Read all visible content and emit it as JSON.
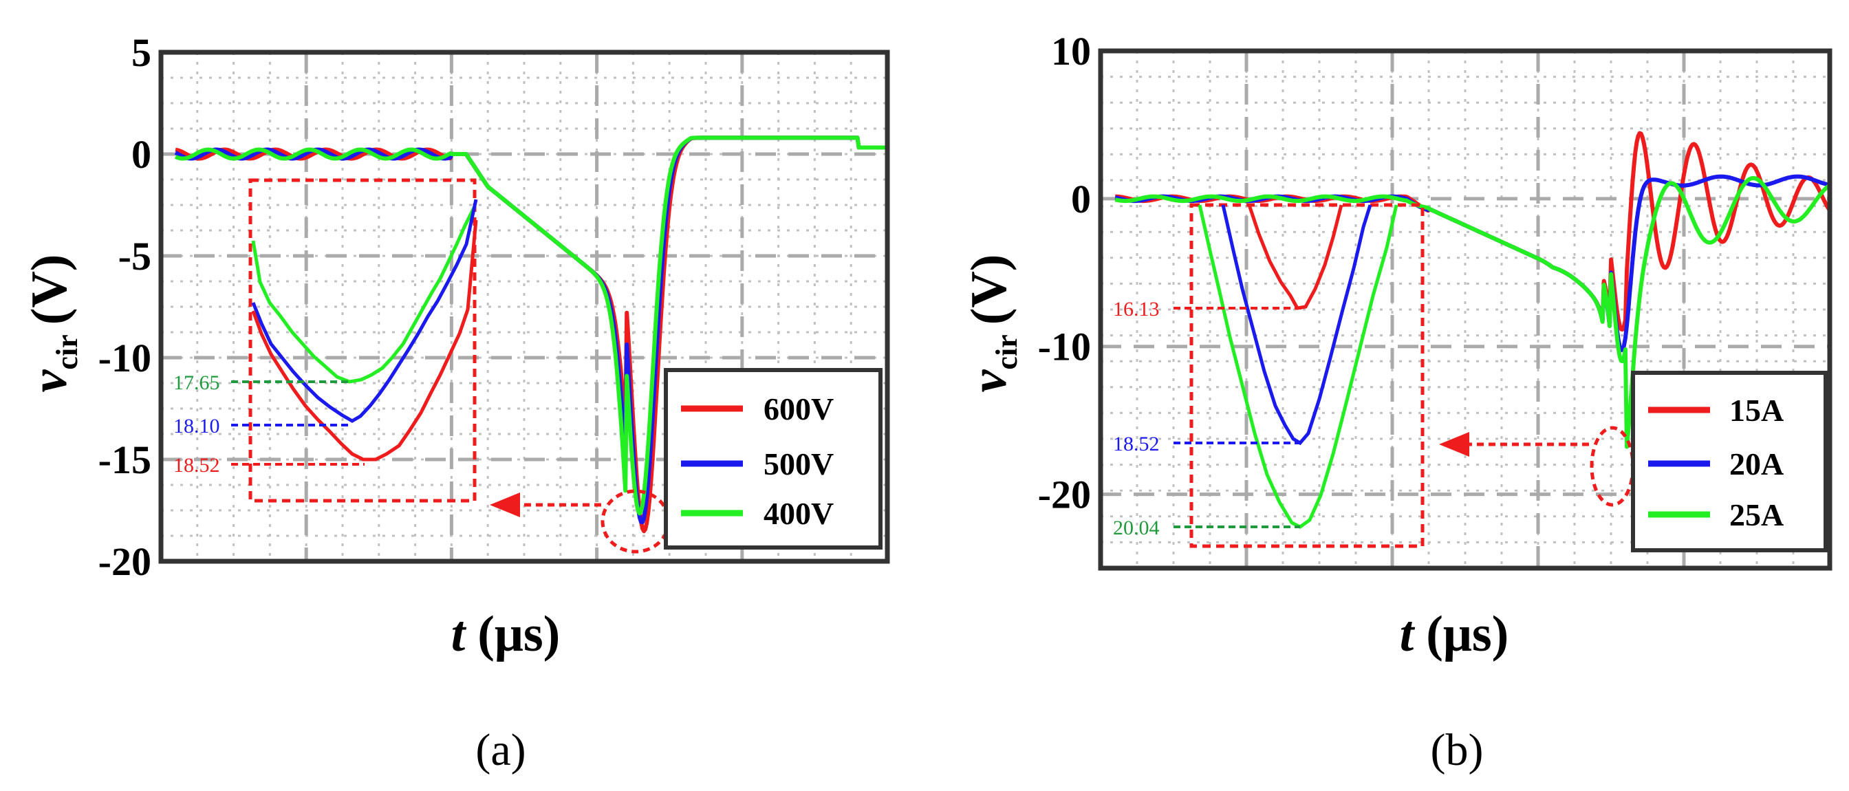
{
  "colors": {
    "red": "#ee1c1c",
    "blue": "#1a1aee",
    "green": "#22ee22",
    "annGreen": "#1f9a3c",
    "grid": "#c0c0c0",
    "frame": "#333333"
  },
  "chart_data": [
    {
      "type": "line",
      "caption": "(a)",
      "xlabel": "t (μs)",
      "ylabel": "v_cir (V)",
      "ylabel_main": "v",
      "ylabel_sub": "cir",
      "ylabel_unit": "(V)",
      "xlabel_main": "t",
      "xlabel_unit": "(μs)",
      "ylim": [
        -20,
        5
      ],
      "yticks": [
        "5",
        "0",
        "-5",
        "-10",
        "-15",
        "-20"
      ],
      "ytick_values": [
        5,
        0,
        -5,
        -10,
        -15,
        -20
      ],
      "xlim": [
        0,
        1
      ],
      "legend_position": "bottom-right",
      "series": [
        {
          "name": "600V",
          "color": "#ee1c1c",
          "peak": -18.52
        },
        {
          "name": "500V",
          "color": "#1a1aee",
          "peak": -18.1
        },
        {
          "name": "400V",
          "color": "#22ee22",
          "peak": -17.65
        }
      ],
      "annotations": [
        {
          "text": "17.65",
          "color": "#1f9a3c"
        },
        {
          "text": "18.10",
          "color": "#1a1aee"
        },
        {
          "text": "18.52",
          "color": "#ee1c1c"
        }
      ]
    },
    {
      "type": "line",
      "caption": "(b)",
      "xlabel": "t (μs)",
      "ylabel": "v_cir (V)",
      "ylabel_main": "v",
      "ylabel_sub": "cir",
      "ylabel_unit": "(V)",
      "xlabel_main": "t",
      "xlabel_unit": "(μs)",
      "ylim": [
        -25,
        10
      ],
      "yticks": [
        "10",
        "0",
        "-10",
        "-20"
      ],
      "ytick_values": [
        10,
        0,
        -10,
        -20
      ],
      "xlim": [
        0,
        1
      ],
      "legend_position": "bottom-right",
      "series": [
        {
          "name": "15A",
          "color": "#ee1c1c",
          "peak": -16.13
        },
        {
          "name": "20A",
          "color": "#1a1aee",
          "peak": -18.52
        },
        {
          "name": "25A",
          "color": "#22ee22",
          "peak": -20.04
        }
      ],
      "annotations": [
        {
          "text": "16.13",
          "color": "#ee1c1c"
        },
        {
          "text": "18.52",
          "color": "#1a1aee"
        },
        {
          "text": "20.04",
          "color": "#1f9a3c"
        }
      ]
    }
  ]
}
